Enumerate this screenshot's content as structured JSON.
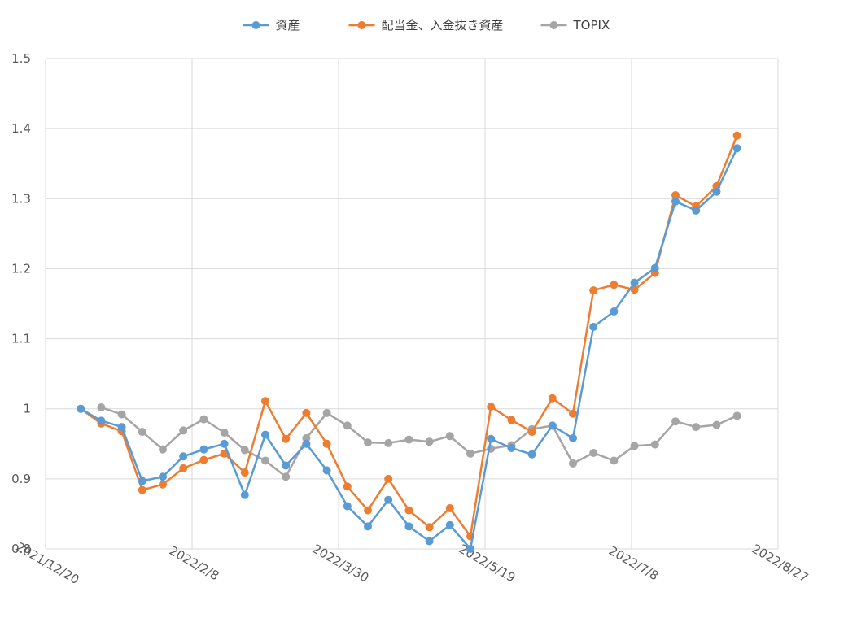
{
  "chart_data": {
    "type": "line",
    "title": "",
    "xlabel": "",
    "ylabel": "",
    "x_axis_type": "date",
    "xlim": [
      "2021-12-20",
      "2022-08-27"
    ],
    "x_ticks": [
      "2021-12-20",
      "2022-02-08",
      "2022-03-30",
      "2022-05-19",
      "2022-07-08",
      "2022-08-27"
    ],
    "x_tick_labels": [
      "2021/12/20",
      "2022/2/8",
      "2022/3/30",
      "2022/5/19",
      "2022/7/8",
      "2022/8/27"
    ],
    "ylim": [
      0.8,
      1.5
    ],
    "y_ticks": [
      0.8,
      0.9,
      1.0,
      1.1,
      1.2,
      1.3,
      1.4,
      1.5
    ],
    "y_tick_labels": [
      "0.8",
      "0.9",
      "1",
      "1.1",
      "1.2",
      "1.3",
      "1.4",
      "1.5"
    ],
    "grid": true,
    "legend_position": "top",
    "series": [
      {
        "name": "資産",
        "color": "#5B9BD5",
        "x": [
          "2022-01-01",
          "2022-01-08",
          "2022-01-15",
          "2022-01-22",
          "2022-01-29",
          "2022-02-05",
          "2022-02-12",
          "2022-02-19",
          "2022-02-26",
          "2022-03-05",
          "2022-03-12",
          "2022-03-19",
          "2022-03-26",
          "2022-04-02",
          "2022-04-09",
          "2022-04-16",
          "2022-04-23",
          "2022-04-30",
          "2022-05-07",
          "2022-05-14",
          "2022-05-21",
          "2022-05-28",
          "2022-06-04",
          "2022-06-11",
          "2022-06-18",
          "2022-06-25",
          "2022-07-02",
          "2022-07-09",
          "2022-07-16",
          "2022-07-23",
          "2022-07-30",
          "2022-08-06",
          "2022-08-13"
        ],
        "y": [
          1.0,
          0.983,
          0.974,
          0.897,
          0.903,
          0.932,
          0.942,
          0.95,
          0.877,
          0.963,
          0.919,
          0.95,
          0.912,
          0.861,
          0.832,
          0.87,
          0.832,
          0.811,
          0.834,
          0.8,
          0.957,
          0.944,
          0.935,
          0.976,
          0.958,
          1.117,
          1.139,
          1.18,
          1.201,
          1.296,
          1.283,
          1.31,
          1.372
        ]
      },
      {
        "name": "配当金、入金抜き資産",
        "color": "#ED7D31",
        "x": [
          "2022-01-01",
          "2022-01-08",
          "2022-01-15",
          "2022-01-22",
          "2022-01-29",
          "2022-02-05",
          "2022-02-12",
          "2022-02-19",
          "2022-02-26",
          "2022-03-05",
          "2022-03-12",
          "2022-03-19",
          "2022-03-26",
          "2022-04-02",
          "2022-04-09",
          "2022-04-16",
          "2022-04-23",
          "2022-04-30",
          "2022-05-07",
          "2022-05-14",
          "2022-05-21",
          "2022-05-28",
          "2022-06-04",
          "2022-06-11",
          "2022-06-18",
          "2022-06-25",
          "2022-07-02",
          "2022-07-09",
          "2022-07-16",
          "2022-07-23",
          "2022-07-30",
          "2022-08-06",
          "2022-08-13"
        ],
        "y": [
          1.0,
          0.979,
          0.968,
          0.884,
          0.892,
          0.915,
          0.927,
          0.936,
          0.909,
          1.011,
          0.957,
          0.994,
          0.95,
          0.889,
          0.855,
          0.9,
          0.855,
          0.831,
          0.858,
          0.818,
          1.003,
          0.984,
          0.967,
          1.015,
          0.993,
          1.169,
          1.177,
          1.17,
          1.194,
          1.305,
          1.289,
          1.318,
          1.39
        ]
      },
      {
        "name": "TOPIX",
        "color": "#A5A5A5",
        "x": [
          "2022-01-08",
          "2022-01-15",
          "2022-01-22",
          "2022-01-29",
          "2022-02-05",
          "2022-02-12",
          "2022-02-19",
          "2022-02-26",
          "2022-03-05",
          "2022-03-12",
          "2022-03-19",
          "2022-03-26",
          "2022-04-02",
          "2022-04-09",
          "2022-04-16",
          "2022-04-23",
          "2022-04-30",
          "2022-05-07",
          "2022-05-14",
          "2022-05-21",
          "2022-05-28",
          "2022-06-04",
          "2022-06-11",
          "2022-06-18",
          "2022-06-25",
          "2022-07-02",
          "2022-07-09",
          "2022-07-16",
          "2022-07-23",
          "2022-07-30",
          "2022-08-06",
          "2022-08-13"
        ],
        "y": [
          1.002,
          0.992,
          0.967,
          0.942,
          0.969,
          0.985,
          0.966,
          0.941,
          0.926,
          0.903,
          0.958,
          0.994,
          0.976,
          0.952,
          0.951,
          0.956,
          0.953,
          0.961,
          0.936,
          0.943,
          0.948,
          0.971,
          0.976,
          0.922,
          0.937,
          0.926,
          0.947,
          0.949,
          0.982,
          0.974,
          0.977,
          0.99
        ]
      }
    ]
  }
}
